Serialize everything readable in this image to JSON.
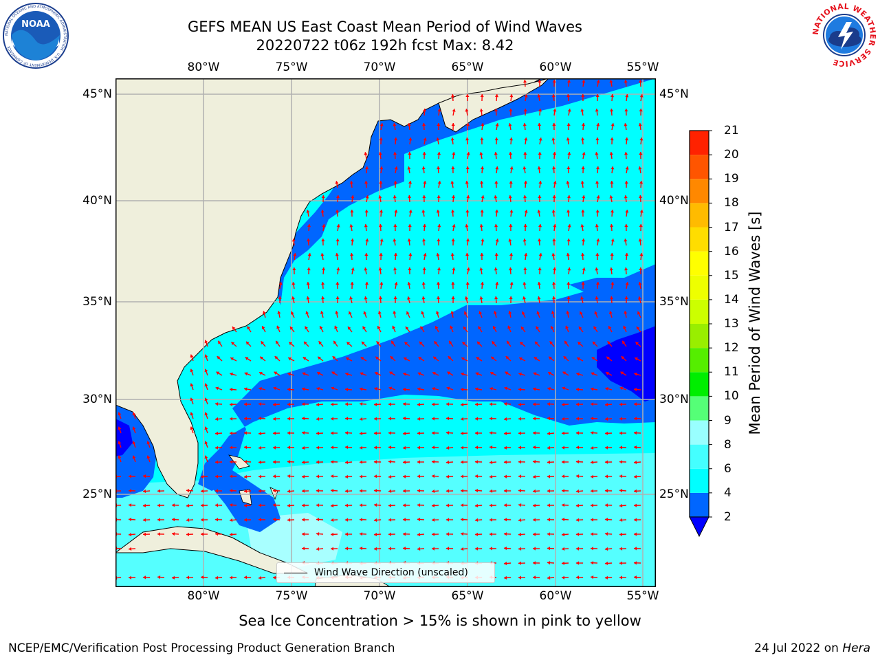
{
  "header": {
    "title": "GEFS MEAN US East Coast Mean Period of Wind Waves",
    "subtitle": "20220722 t06z 192h fcst   Max: 8.42"
  },
  "map": {
    "lon_ticks_top": [
      "80°W",
      "75°W",
      "70°W",
      "65°W",
      "60°W",
      "55°W"
    ],
    "lon_ticks_bottom": [
      "80°W",
      "75°W",
      "70°W",
      "65°W",
      "60°W",
      "55°W"
    ],
    "lat_ticks_left": [
      "45°N",
      "40°N",
      "35°N",
      "30°N",
      "25°N"
    ],
    "lat_ticks_right": [
      "45°N",
      "40°N",
      "35°N",
      "30°N",
      "25°N"
    ],
    "lon_range": [
      -85,
      -54.3
    ],
    "lat_range": [
      20.5,
      46
    ],
    "legend_label": "Wind Wave Direction (unscaled)",
    "arrow_color": "#ff0000",
    "land_color": "#efefdc"
  },
  "colorbar": {
    "title": "Mean Period of Wind Waves [s]",
    "levels": [
      "2",
      "4",
      "6",
      "8",
      "9",
      "10",
      "11",
      "12",
      "13",
      "14",
      "15",
      "16",
      "17",
      "18",
      "19",
      "20",
      "21"
    ],
    "colors": [
      "#0066ff",
      "#00ffff",
      "#44ffff",
      "#99ffff",
      "#55ff77",
      "#00ee00",
      "#55ee00",
      "#99ee00",
      "#ccff00",
      "#eeff00",
      "#ffff00",
      "#ffdd00",
      "#ffbb00",
      "#ff8800",
      "#ff5500",
      "#ff2200"
    ],
    "extend_color": "#0000ff"
  },
  "footer": {
    "note": "Sea Ice Concentration > 15% is shown in pink to yellow",
    "left": "NCEP/EMC/Verification Post Processing Product Generation Branch",
    "date": "24 Jul 2022 on ",
    "machine": "Hera"
  },
  "logos": {
    "left_text": "NOAA",
    "left_ring": "NATIONAL OCEANIC AND ATMOSPHERIC ADMINISTRATION · U.S. DEPARTMENT OF COMMERCE",
    "right_ring": "NATIONAL WEATHER SERVICE"
  }
}
